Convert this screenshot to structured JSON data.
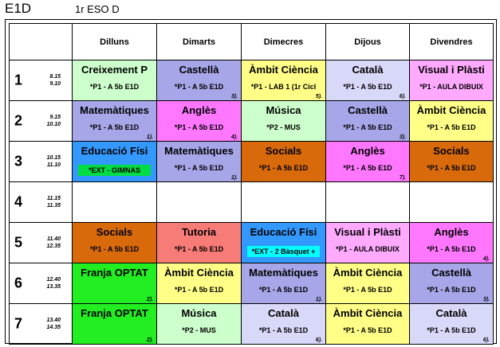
{
  "header": {
    "title": "E1D",
    "subtitle": "1r ESO D"
  },
  "days": [
    "Dilluns",
    "Dimarts",
    "Dimecres",
    "Dijous",
    "Divendres"
  ],
  "periods": [
    {
      "num": "1",
      "start": "8.15",
      "end": "9.10"
    },
    {
      "num": "2",
      "start": "9.15",
      "end": "10.10"
    },
    {
      "num": "3",
      "start": "10.15",
      "end": "11.10"
    },
    {
      "num": "4",
      "start": "11.15",
      "end": "11.35"
    },
    {
      "num": "5",
      "start": "11.40",
      "end": "12.35"
    },
    {
      "num": "6",
      "start": "12.40",
      "end": "13.35"
    },
    {
      "num": "7",
      "start": "13.40",
      "end": "14.35"
    }
  ],
  "cells": [
    [
      {
        "subject": "Creixement P",
        "group": "*P1 - A 5b E1D",
        "note": "",
        "color": "#ccffcc"
      },
      {
        "subject": "Castellà",
        "group": "*P1 - A 5b E1D",
        "note": "3).",
        "color": "#a6a6e8"
      },
      {
        "subject": "Àmbit Ciència",
        "group": "*P1 - LAB 1 (1r Cicl",
        "note": "5).",
        "color": "#ffff88"
      },
      {
        "subject": "Català",
        "group": "*P1 - A 5b E1D",
        "note": "6).",
        "color": "#d8d8f8"
      },
      {
        "subject": "Visual i Plàsti",
        "group": "*P1 - AULA DIBUIX",
        "note": "",
        "color": "#ffaaff"
      }
    ],
    [
      {
        "subject": "Matemàtiques",
        "group": "*P1 - A 5b E1D",
        "note": "1).",
        "color": "#a6a6e8"
      },
      {
        "subject": "Anglès",
        "group": "*P1 - A 5b E1D",
        "note": "4).",
        "color": "#ff77ff"
      },
      {
        "subject": "Música",
        "group": "*P2 - MUS",
        "note": "",
        "color": "#ccffcc"
      },
      {
        "subject": "Castellà",
        "group": "*P1 - A 5b E1D",
        "note": "3).",
        "color": "#a6a6e8"
      },
      {
        "subject": "Àmbit Ciència",
        "group": "*P1 - A 5b E1D",
        "note": "",
        "color": "#ffff88"
      }
    ],
    [
      {
        "subject": "Educació Físi",
        "group": "*EXT - GIMNAS",
        "note": "",
        "color": "#3399ff",
        "badge": "#00dd44"
      },
      {
        "subject": "Matemàtiques",
        "group": "*P1 - A 5b E1D",
        "note": "1).",
        "color": "#a6a6e8"
      },
      {
        "subject": "Socials",
        "group": "*P1 - A 5b E1D",
        "note": "",
        "color": "#d86a0c"
      },
      {
        "subject": "Anglès",
        "group": "*P1 - A 5b E1D",
        "note": "7).",
        "color": "#ff77ff"
      },
      {
        "subject": "Socials",
        "group": "*P1 - A 5b E1D",
        "note": "",
        "color": "#d86a0c"
      }
    ],
    [
      {
        "subject": "",
        "group": "",
        "note": "",
        "color": "#ffffff"
      },
      {
        "subject": "",
        "group": "",
        "note": "",
        "color": "#ffffff"
      },
      {
        "subject": "",
        "group": "",
        "note": "",
        "color": "#ffffff"
      },
      {
        "subject": "",
        "group": "",
        "note": "",
        "color": "#ffffff"
      },
      {
        "subject": "",
        "group": "",
        "note": "",
        "color": "#ffffff"
      }
    ],
    [
      {
        "subject": "Socials",
        "group": "*P1 - A 5b E1D",
        "note": "",
        "color": "#d86a0c"
      },
      {
        "subject": "Tutoria",
        "group": "*P1 - A 5b E1D",
        "note": "",
        "color": "#f77b77"
      },
      {
        "subject": "Educació Físi",
        "group": "*EXT - 2 Bàsquet +",
        "note": "",
        "color": "#3399ff",
        "badge": "#00ffff"
      },
      {
        "subject": "Visual i Plàsti",
        "group": "*P1 - AULA DIBUIX",
        "note": "",
        "color": "#ffaaff"
      },
      {
        "subject": "Anglès",
        "group": "*P1 - A 5b E1D",
        "note": "4).",
        "color": "#ff77ff"
      }
    ],
    [
      {
        "subject": "Franja OPTAT",
        "group": "",
        "note": "2).",
        "color": "#22ee22"
      },
      {
        "subject": "Àmbit Ciència",
        "group": "*P1 - A 5b E1D",
        "note": "",
        "color": "#ffff88"
      },
      {
        "subject": "Matemàtiques",
        "group": "*P1 - A 5b E1D",
        "note": "1).",
        "color": "#a6a6e8"
      },
      {
        "subject": "Àmbit Ciència",
        "group": "*P1 - A 5b E1D",
        "note": "",
        "color": "#ffff88"
      },
      {
        "subject": "Castellà",
        "group": "*P1 - A 5b E1D",
        "note": "3).",
        "color": "#a6a6e8"
      }
    ],
    [
      {
        "subject": "Franja OPTAT",
        "group": "",
        "note": "2).",
        "color": "#22ee22"
      },
      {
        "subject": "Música",
        "group": "*P2 - MUS",
        "note": "",
        "color": "#ccffcc"
      },
      {
        "subject": "Català",
        "group": "*P1 - A 5b E1D",
        "note": "6).",
        "color": "#d8d8f8"
      },
      {
        "subject": "Àmbit Ciència",
        "group": "*P1 - A 5b E1D",
        "note": "",
        "color": "#ffff88"
      },
      {
        "subject": "Català",
        "group": "*P1 - A 5b E1D",
        "note": "6).",
        "color": "#d8d8f8"
      }
    ]
  ]
}
